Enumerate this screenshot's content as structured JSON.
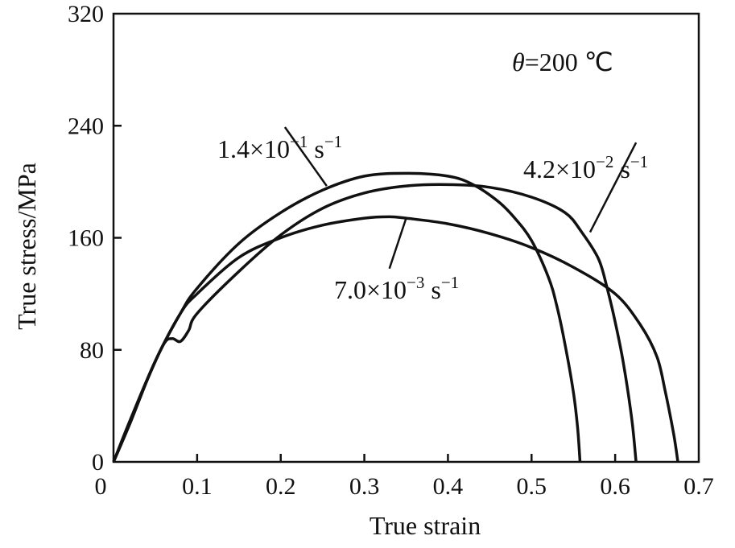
{
  "chart_data": {
    "type": "line",
    "xlabel": "True strain",
    "ylabel": "True stress/MPa",
    "xlim": [
      0,
      0.7
    ],
    "ylim": [
      0,
      320
    ],
    "x_ticks": [
      "0",
      "0.1",
      "0.2",
      "0.3",
      "0.4",
      "0.5",
      "0.6",
      "0.7"
    ],
    "y_ticks": [
      "0",
      "80",
      "160",
      "240",
      "320"
    ],
    "grid": false,
    "legend": "none",
    "annotation": {
      "symbol": "θ",
      "text": "=200 ℃"
    },
    "series": [
      {
        "label": {
          "mantissa": "1.4×10",
          "exp": "−1",
          "unit": " s",
          "unit_exp": "−1"
        },
        "points": [
          [
            0,
            0
          ],
          [
            0.02,
            28
          ],
          [
            0.05,
            72
          ],
          [
            0.08,
            106
          ],
          [
            0.1,
            124
          ],
          [
            0.15,
            156
          ],
          [
            0.2,
            178
          ],
          [
            0.25,
            194
          ],
          [
            0.3,
            204
          ],
          [
            0.35,
            206
          ],
          [
            0.4,
            204
          ],
          [
            0.43,
            198
          ],
          [
            0.46,
            186
          ],
          [
            0.48,
            174
          ],
          [
            0.5,
            158
          ],
          [
            0.52,
            132
          ],
          [
            0.53,
            112
          ],
          [
            0.54,
            84
          ],
          [
            0.55,
            50
          ],
          [
            0.555,
            25
          ],
          [
            0.558,
            0
          ]
        ]
      },
      {
        "label": {
          "mantissa": "4.2×10",
          "exp": "−2",
          "unit": " s",
          "unit_exp": "−1"
        },
        "points": [
          [
            0,
            0
          ],
          [
            0.02,
            28
          ],
          [
            0.04,
            58
          ],
          [
            0.06,
            84
          ],
          [
            0.07,
            88
          ],
          [
            0.08,
            86
          ],
          [
            0.09,
            94
          ],
          [
            0.1,
            106
          ],
          [
            0.15,
            136
          ],
          [
            0.2,
            162
          ],
          [
            0.25,
            181
          ],
          [
            0.3,
            192
          ],
          [
            0.35,
            197
          ],
          [
            0.4,
            198
          ],
          [
            0.45,
            196
          ],
          [
            0.5,
            189
          ],
          [
            0.54,
            178
          ],
          [
            0.56,
            164
          ],
          [
            0.58,
            145
          ],
          [
            0.59,
            125
          ],
          [
            0.6,
            100
          ],
          [
            0.61,
            70
          ],
          [
            0.62,
            30
          ],
          [
            0.625,
            0
          ]
        ]
      },
      {
        "label": {
          "mantissa": "7.0×10",
          "exp": "−3",
          "unit": " s",
          "unit_exp": "−1"
        },
        "points": [
          [
            0,
            0
          ],
          [
            0.02,
            30
          ],
          [
            0.05,
            72
          ],
          [
            0.08,
            106
          ],
          [
            0.1,
            120
          ],
          [
            0.15,
            146
          ],
          [
            0.2,
            160
          ],
          [
            0.25,
            169
          ],
          [
            0.3,
            174
          ],
          [
            0.33,
            175
          ],
          [
            0.35,
            174
          ],
          [
            0.4,
            170
          ],
          [
            0.45,
            163
          ],
          [
            0.5,
            153
          ],
          [
            0.55,
            139
          ],
          [
            0.6,
            120
          ],
          [
            0.63,
            98
          ],
          [
            0.65,
            75
          ],
          [
            0.66,
            50
          ],
          [
            0.67,
            20
          ],
          [
            0.675,
            0
          ]
        ]
      }
    ]
  }
}
